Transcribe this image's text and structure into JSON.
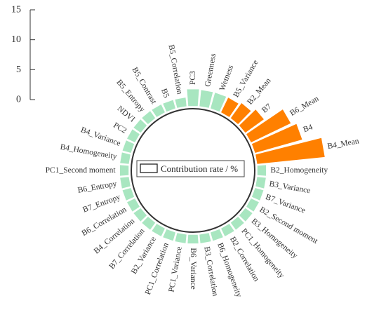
{
  "chart_data": {
    "type": "bar",
    "layout": "circular",
    "legend": {
      "label": "Contribution rate / %",
      "placement": "center"
    },
    "y_ticks": [
      "15",
      "10",
      "5",
      "0"
    ],
    "ylim": [
      0,
      15
    ],
    "colors": {
      "top": "#ff8000",
      "other": "#a8e6c0",
      "axis": "#333333"
    },
    "categories": [
      "PC3",
      "Greenness",
      "Wetness",
      "B5_Variance",
      "B2_Mean",
      "B7",
      "B6_Mean",
      "B4",
      "B4_Mean",
      "B2_Homogeneity",
      "B3_Variance",
      "B7_Variance",
      "B2_Second moment",
      "B3_Homogeneity",
      "PC1_Homogeneity",
      "B2_Correlation",
      "B6_Homogeneity",
      "B3_Correlation",
      "B6_Variance",
      "PC1_Variance",
      "PC1_Correlation",
      "B2_Variance",
      "B7_Correlation",
      "B4_Correlation",
      "B6_Correlation",
      "B7_Entropy",
      "B6_Entropy",
      "PC1_Second moment",
      "B4_Homogeneity",
      "B4_Variance",
      "PC2",
      "NDVI",
      "B5_Entropy",
      "B5_Contrast",
      "B5",
      "B5_Correlation"
    ],
    "values": [
      3.1,
      3.0,
      3.0,
      3.0,
      3.4,
      4.2,
      8.1,
      9.0,
      12.5,
      1.6,
      1.6,
      1.6,
      1.6,
      1.6,
      1.6,
      1.6,
      1.6,
      1.6,
      1.6,
      1.6,
      1.6,
      1.6,
      1.6,
      1.6,
      1.6,
      1.6,
      1.6,
      1.6,
      1.6,
      1.6,
      1.6,
      1.6,
      1.6,
      1.6,
      1.6,
      1.6
    ],
    "highlighted": [
      "B5_Variance",
      "B2_Mean",
      "B7",
      "B6_Mean",
      "B4",
      "B4_Mean"
    ]
  }
}
